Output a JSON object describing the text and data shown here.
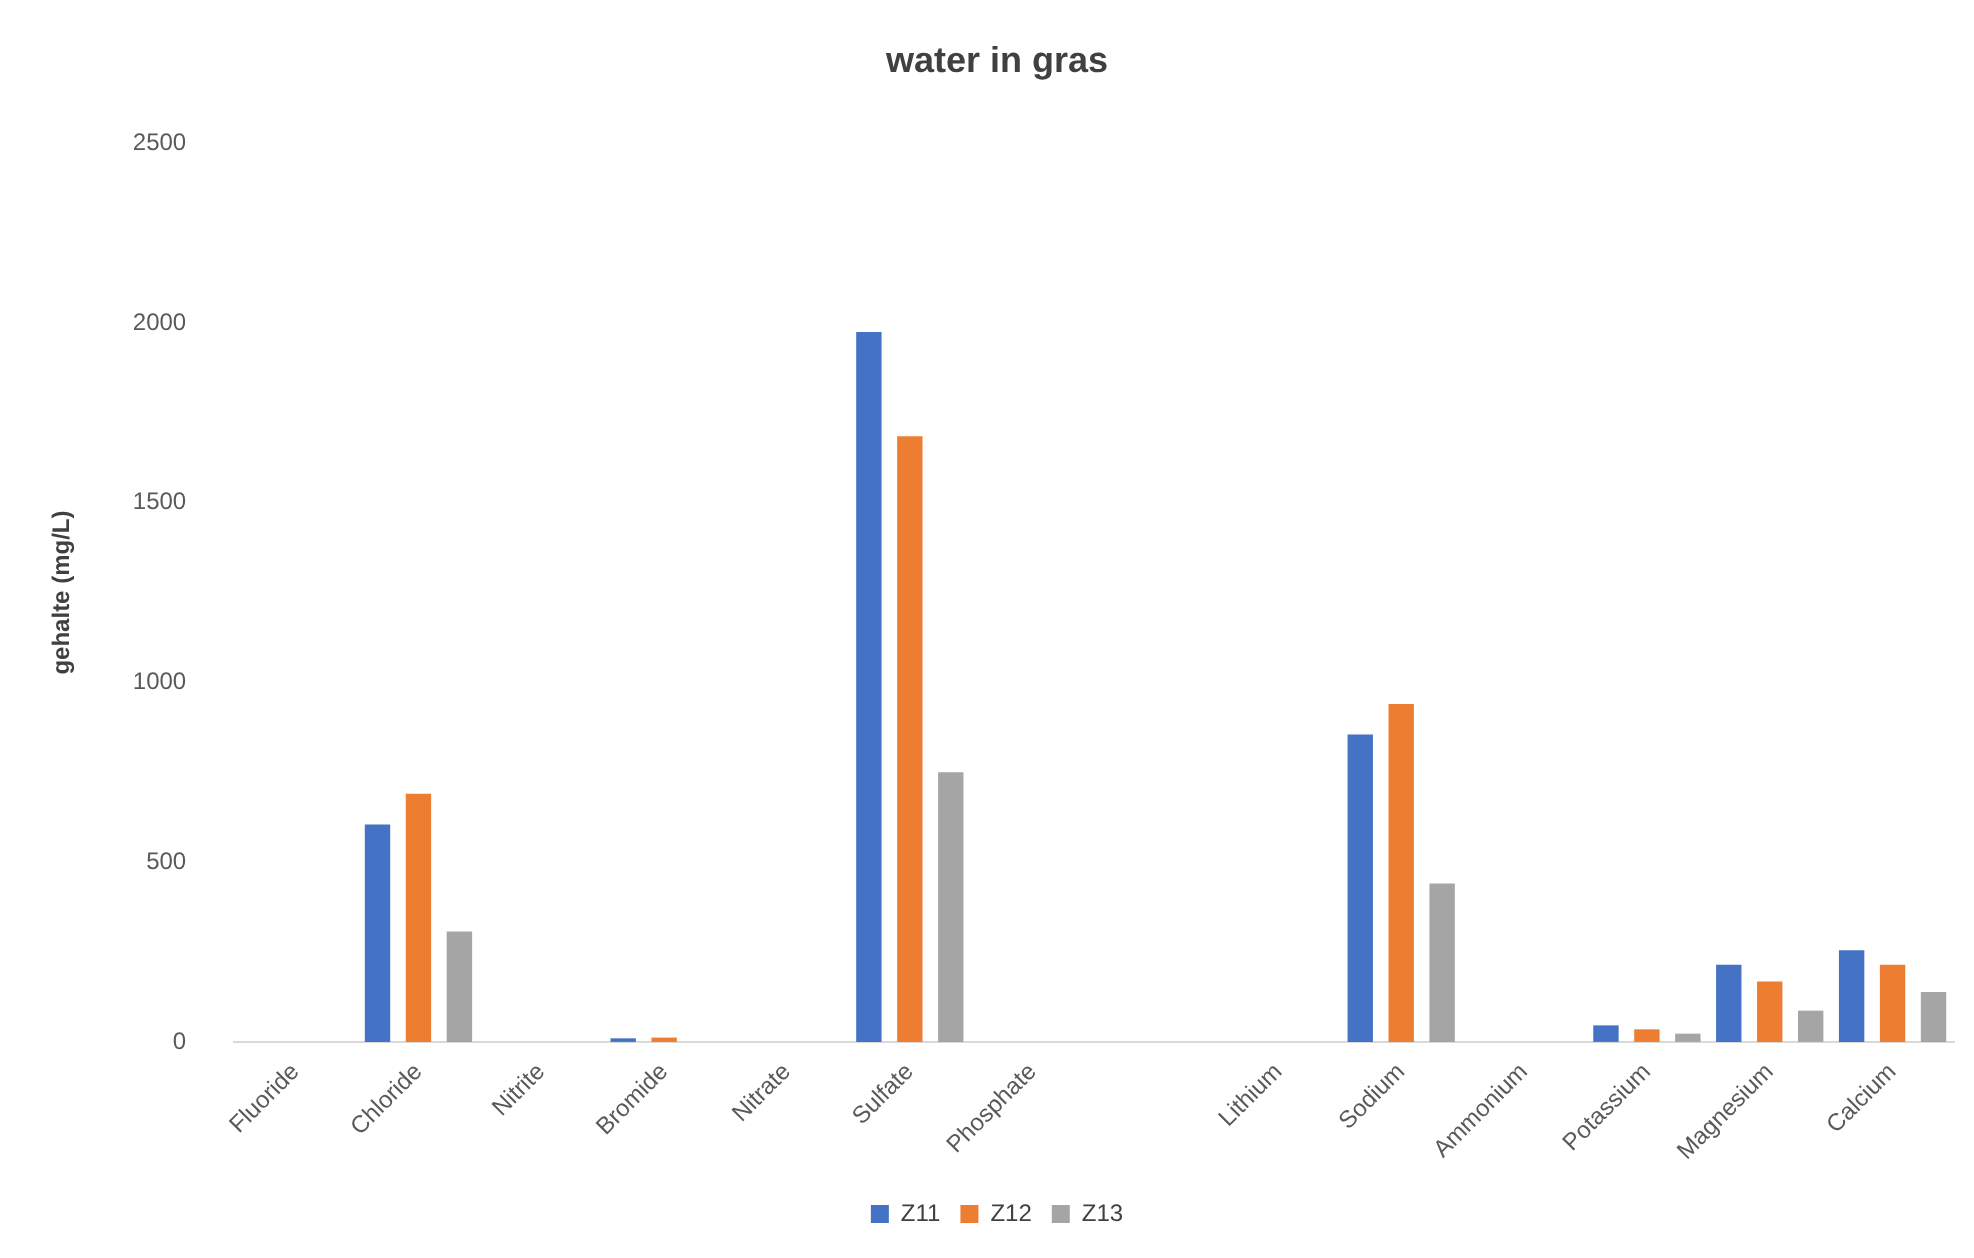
{
  "chart_data": {
    "type": "bar",
    "title": "water in gras",
    "ylabel": "gehalte (mg/L)",
    "categories": [
      "Fluoride",
      "Chloride",
      "Nitrite",
      "Bromide",
      "Nitrate",
      "Sulfate",
      "Phosphate",
      null,
      "Lithium",
      "Sodium",
      "Ammonium",
      "Potassium",
      "Magnesium",
      "Calcium"
    ],
    "series": [
      {
        "name": "Z11",
        "color": "#4472c4",
        "values": [
          null,
          605,
          null,
          10,
          null,
          1975,
          null,
          null,
          null,
          855,
          null,
          46,
          215,
          255
        ]
      },
      {
        "name": "Z12",
        "color": "#ed7d31",
        "values": [
          null,
          690,
          null,
          12,
          null,
          1685,
          null,
          null,
          null,
          940,
          null,
          35,
          168,
          215
        ]
      },
      {
        "name": "Z13",
        "color": "#a5a5a5",
        "values": [
          null,
          307,
          null,
          null,
          null,
          750,
          null,
          null,
          null,
          441,
          null,
          23,
          87,
          139
        ]
      }
    ],
    "ylim": [
      0,
      2500
    ],
    "yticks": [
      0,
      500,
      1000,
      1500,
      2000,
      2500
    ],
    "grid": false,
    "legend": "bottom"
  }
}
